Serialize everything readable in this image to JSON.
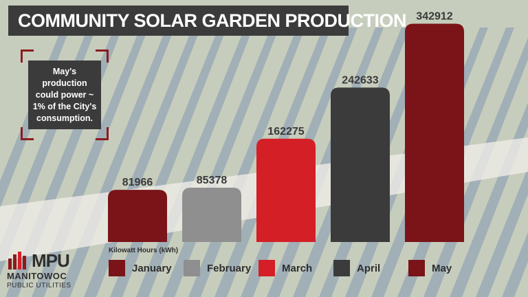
{
  "title": "COMMUNITY SOLAR GARDEN PRODUCTION",
  "callout": "May's production could power ~ 1% of the City's consumption.",
  "unit_label": "Kilowatt Hours (kWh)",
  "logo": {
    "mark": "MPU",
    "line1": "MANITOWOC",
    "line2": "PUBLIC UTILITIES"
  },
  "colors": {
    "title_bg": "#3b3b3b",
    "january": "#7a1418",
    "february": "#8f8f8f",
    "march": "#d41f26",
    "april": "#3b3b3b",
    "may": "#7a1418"
  },
  "chart_data": {
    "type": "bar",
    "categories": [
      "January",
      "February",
      "March",
      "April",
      "May"
    ],
    "values": [
      81966,
      85378,
      162275,
      242633,
      342912
    ],
    "ylabel": "Kilowatt Hours (kWh)",
    "ylim": [
      0,
      350000
    ],
    "grid": false,
    "legend": "bottom",
    "data_labels": true
  }
}
